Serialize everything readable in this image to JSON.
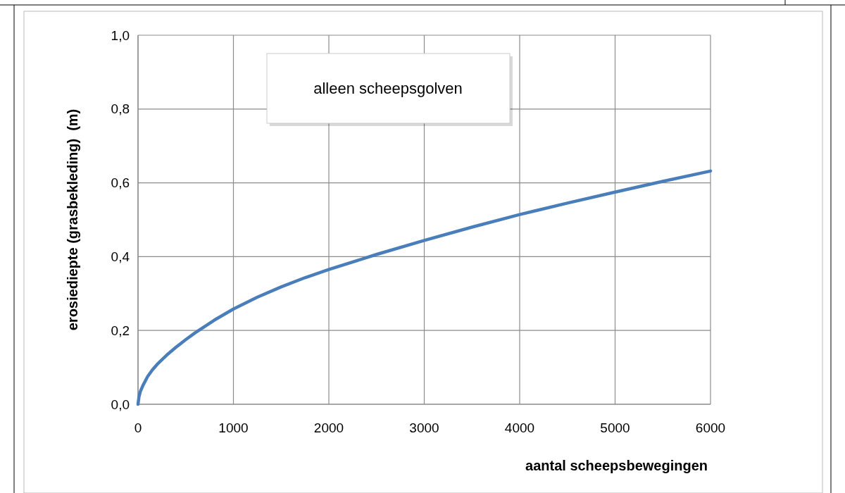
{
  "chart_data": {
    "type": "line",
    "title": "alleen scheepsgolven",
    "xlabel": "aantal scheepsbewegingen",
    "ylabel": "erosiediepte (grasbekleding)  (m)",
    "x": [
      0,
      10,
      25,
      50,
      100,
      150,
      200,
      300,
      400,
      500,
      600,
      800,
      1000,
      1250,
      1500,
      1750,
      2000,
      2500,
      3000,
      3500,
      4000,
      4500,
      5000,
      5500,
      6000
    ],
    "series": [
      {
        "color": "#4a7ebb",
        "values": [
          0,
          0.02,
          0.035,
          0.05,
          0.075,
          0.093,
          0.108,
          0.133,
          0.155,
          0.175,
          0.194,
          0.228,
          0.258,
          0.29,
          0.318,
          0.343,
          0.365,
          0.406,
          0.444,
          0.48,
          0.514,
          0.545,
          0.575,
          0.604,
          0.632
        ]
      }
    ],
    "xlim": [
      0,
      6000
    ],
    "xticks": [
      0,
      1000,
      2000,
      3000,
      4000,
      5000,
      6000
    ],
    "ylim": [
      0,
      1
    ],
    "yticks": [
      {
        "value": 0,
        "label": "0,0"
      },
      {
        "value": 0.2,
        "label": "0,2"
      },
      {
        "value": 0.4,
        "label": "0,4"
      },
      {
        "value": 0.6,
        "label": "0,6"
      },
      {
        "value": 0.8,
        "label": "0,8"
      },
      {
        "value": 1,
        "label": "1,0"
      }
    ],
    "grid": true,
    "marker": "none",
    "line_style": "solid"
  }
}
